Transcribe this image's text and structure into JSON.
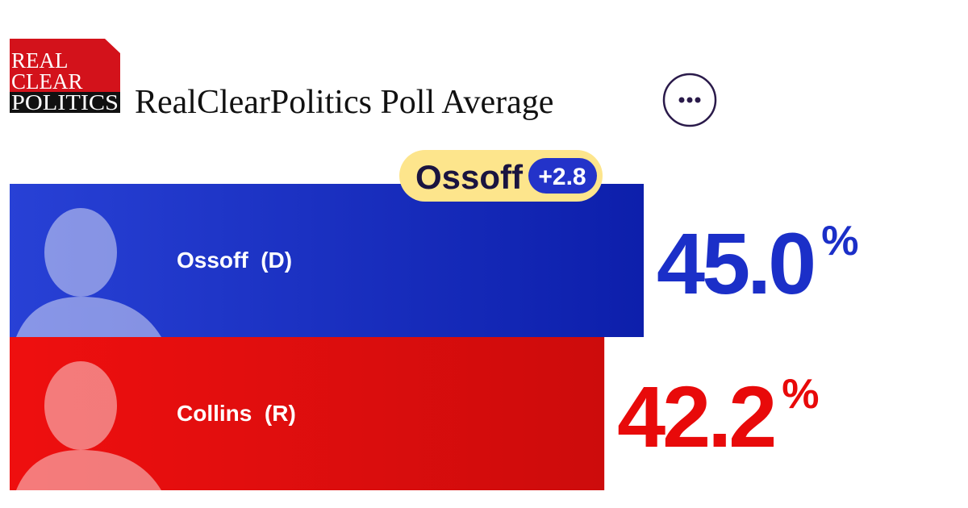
{
  "header": {
    "logo": [
      "REAL",
      "CLEAR",
      "POLITICS"
    ],
    "title": "RealClearPolitics Poll Average"
  },
  "chart_data": {
    "type": "bar",
    "categories": [
      "Ossoff  (D)",
      "Collins  (R)"
    ],
    "values": [
      45.0,
      42.2
    ],
    "value_labels": [
      "45.0",
      "42.2"
    ],
    "unit": "%",
    "colors": [
      "#1b2fc8",
      "#e80a0a"
    ],
    "lead": {
      "name": "Ossoff",
      "value": 2.8,
      "label": "+2.8"
    }
  }
}
